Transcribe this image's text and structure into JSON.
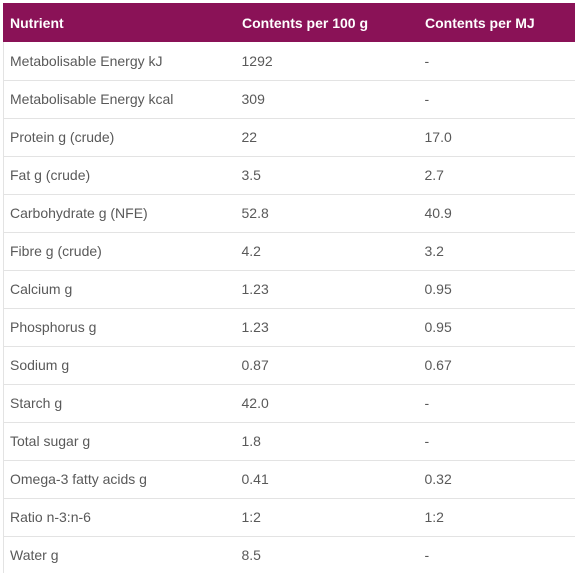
{
  "table": {
    "headers": [
      "Nutrient",
      "Contents per 100 g",
      "Contents per MJ"
    ],
    "rows": [
      [
        "Metabolisable Energy kJ",
        "1292",
        "-"
      ],
      [
        "Metabolisable Energy kcal",
        "309",
        "-"
      ],
      [
        "Protein g (crude)",
        "22",
        "17.0"
      ],
      [
        "Fat g (crude)",
        "3.5",
        "2.7"
      ],
      [
        "Carbohydrate g (NFE)",
        "52.8",
        "40.9"
      ],
      [
        "Fibre g (crude)",
        "4.2",
        "3.2"
      ],
      [
        "Calcium g",
        "1.23",
        "0.95"
      ],
      [
        "Phosphorus g",
        "1.23",
        "0.95"
      ],
      [
        "Sodium g",
        "0.87",
        "0.67"
      ],
      [
        "Starch g",
        "42.0",
        "-"
      ],
      [
        "Total sugar g",
        "1.8",
        "-"
      ],
      [
        "Omega-3 fatty acids g",
        "0.41",
        "0.32"
      ],
      [
        "Ratio n-3:n-6",
        "1:2",
        "1:2"
      ],
      [
        "Water g",
        "8.5",
        "-"
      ]
    ]
  },
  "colors": {
    "header_background": "#8a1257",
    "header_text": "#ffffff",
    "cell_text": "#595959",
    "row_divider": "#e3e3e3"
  }
}
